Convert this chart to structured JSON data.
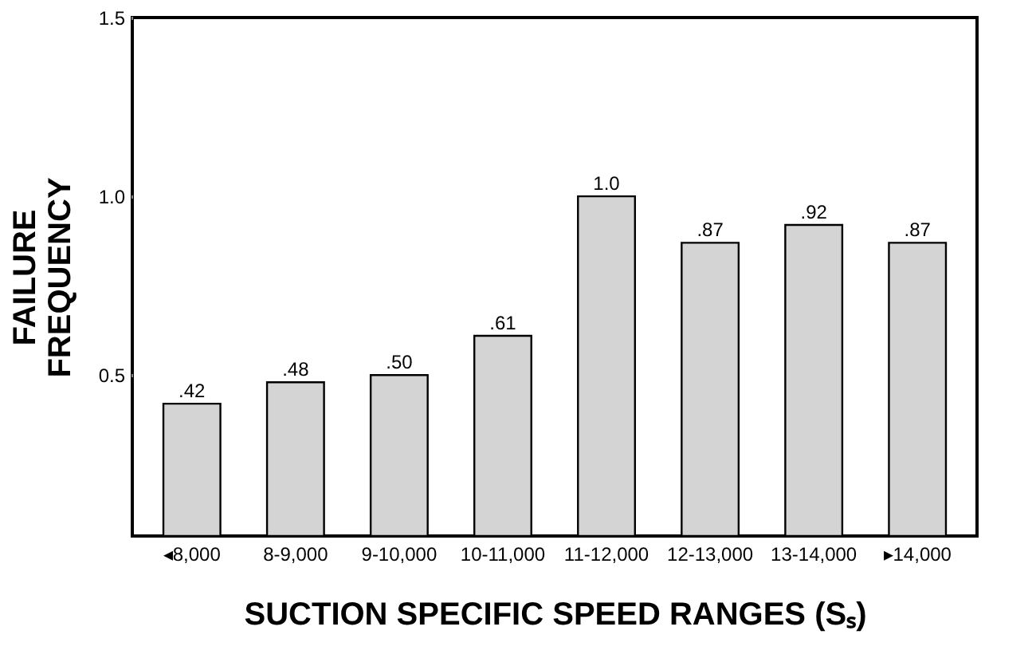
{
  "chart_data": {
    "type": "bar",
    "xlabel": "SUCTION SPECIFIC SPEED RANGES (Sₛ)",
    "ylabel": "FAILURE FREQUENCY",
    "categories": [
      "◂8,000",
      "8-9,000",
      "9-10,000",
      "10-11,000",
      "11-12,000",
      "12-13,000",
      "13-14,000",
      "▸14,000"
    ],
    "values": [
      0.42,
      0.48,
      0.5,
      0.61,
      1.0,
      0.87,
      0.92,
      0.87
    ],
    "value_labels": [
      ".42",
      ".48",
      ".50",
      ".61",
      "1.0",
      ".87",
      ".92",
      ".87"
    ],
    "color": "#d4d4d4",
    "ylim": [
      0.05,
      1.5
    ],
    "yticks": [
      {
        "value": 0.5,
        "label": "0.5"
      },
      {
        "value": 1.0,
        "label": "1.0"
      },
      {
        "value": 1.5,
        "label": "1.5"
      }
    ],
    "grid": false
  }
}
